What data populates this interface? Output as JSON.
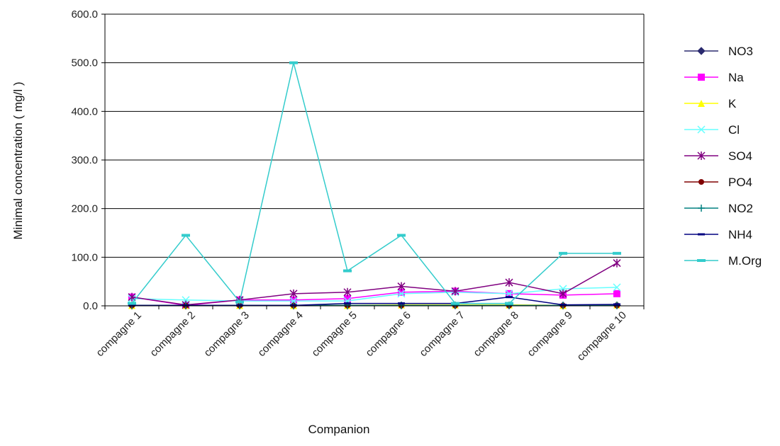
{
  "chart_data": {
    "type": "line",
    "title": "",
    "xlabel": "Companion",
    "ylabel": "Minimal concentration ( mg/l )",
    "ylim": [
      0,
      600
    ],
    "yticks": [
      "0.0",
      "100.0",
      "200.0",
      "300.0",
      "400.0",
      "500.0",
      "600.0"
    ],
    "grid": "horizontal",
    "legend_position": "right",
    "categories": [
      "compagne 1",
      "compagne 2",
      "compagne 3",
      "compagne 4",
      "compagne 5",
      "compagne 6",
      "compagne 7",
      "compagne 8",
      "compagne 9",
      "compagne 10"
    ],
    "series": [
      {
        "name": "NO3",
        "color": "#2a2a6e",
        "marker": "diamond",
        "values": [
          0.5,
          0.5,
          0.5,
          0.5,
          0.5,
          1,
          1,
          1,
          0.5,
          1
        ]
      },
      {
        "name": "Na",
        "color": "#ff00ff",
        "marker": "square",
        "values": [
          18,
          1,
          12,
          12,
          15,
          28,
          30,
          25,
          22,
          25
        ]
      },
      {
        "name": "K",
        "color": "#ffff00",
        "marker": "triangle",
        "values": [
          1,
          1,
          1,
          1,
          1,
          2,
          2,
          2,
          1,
          2
        ]
      },
      {
        "name": "Cl",
        "color": "#66ffff",
        "marker": "x",
        "values": [
          15,
          12,
          10,
          10,
          10,
          25,
          28,
          25,
          35,
          38
        ]
      },
      {
        "name": "SO4",
        "color": "#800080",
        "marker": "star",
        "values": [
          18,
          2,
          12,
          25,
          28,
          40,
          30,
          48,
          25,
          88
        ]
      },
      {
        "name": "PO4",
        "color": "#800000",
        "marker": "circle",
        "values": [
          0.5,
          0.5,
          0.5,
          0.5,
          0.5,
          0.5,
          0.5,
          0.5,
          0.5,
          0.5
        ]
      },
      {
        "name": "NO2",
        "color": "#008080",
        "marker": "plus",
        "values": [
          1,
          1,
          1,
          1,
          1,
          1,
          1,
          1,
          1,
          1
        ]
      },
      {
        "name": "NH4",
        "color": "#000080",
        "marker": "dash",
        "values": [
          1,
          1,
          1,
          1,
          5,
          5,
          5,
          18,
          2,
          3
        ]
      },
      {
        "name": "M.Org",
        "color": "#33cccc",
        "marker": "bar",
        "values": [
          5,
          145,
          8,
          500,
          72,
          145,
          5,
          5,
          108,
          108
        ]
      }
    ]
  }
}
